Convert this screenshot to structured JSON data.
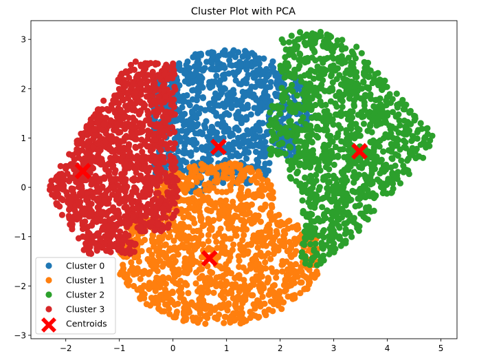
{
  "chart_data": {
    "type": "scatter",
    "title": "Cluster Plot with PCA",
    "xlabel": "",
    "ylabel": "",
    "xlim": [
      -2.65,
      5.3
    ],
    "ylim": [
      -3.07,
      3.38
    ],
    "xticks": [
      -2,
      -1,
      0,
      1,
      2,
      3,
      4,
      5
    ],
    "yticks": [
      -3,
      -2,
      -1,
      0,
      1,
      2,
      3
    ],
    "grid": false,
    "legend_position": "lower-left",
    "series": [
      {
        "name": "Cluster 0",
        "color": "#1f77b4",
        "point_count": 900,
        "region": {
          "x_range": [
            -0.4,
            2.6
          ],
          "y_range": [
            -0.4,
            2.85
          ]
        }
      },
      {
        "name": "Cluster 1",
        "color": "#ff7f0e",
        "point_count": 1200,
        "region": {
          "x_range": [
            -1.0,
            2.8
          ],
          "y_range": [
            -2.8,
            0.6
          ]
        }
      },
      {
        "name": "Cluster 2",
        "color": "#2ca02c",
        "point_count": 1100,
        "region": {
          "x_range": [
            1.8,
            5.0
          ],
          "y_range": [
            -1.6,
            3.1
          ]
        }
      },
      {
        "name": "Cluster 3",
        "color": "#d62728",
        "point_count": 1200,
        "region": {
          "x_range": [
            -2.35,
            0.1
          ],
          "y_range": [
            -1.3,
            2.55
          ]
        }
      }
    ],
    "centroids": {
      "name": "Centroids",
      "color": "#ff0000",
      "marker": "X",
      "points": [
        {
          "x": 0.85,
          "y": 0.82
        },
        {
          "x": 0.68,
          "y": -1.44
        },
        {
          "x": 3.48,
          "y": 0.73
        },
        {
          "x": -1.68,
          "y": 0.33
        }
      ]
    }
  }
}
